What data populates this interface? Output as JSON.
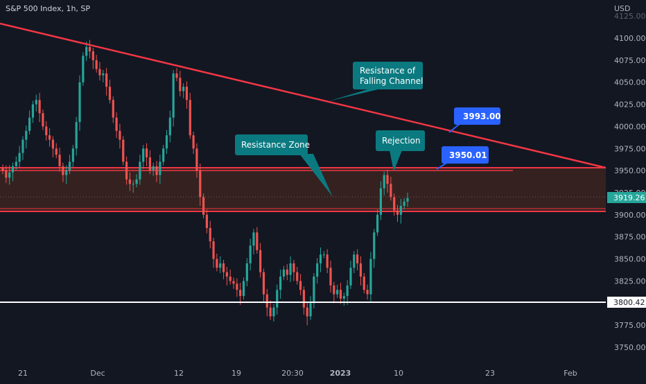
{
  "header": {
    "title": "S&P 500 Index, 1h, SP",
    "currency": "USD"
  },
  "colors": {
    "background": "#131722",
    "up": "#26a69a",
    "down": "#ef5350",
    "trendline": "#f23645",
    "zone_fill": "#3a2320",
    "zone_border": "#f23645",
    "support": "#ffffff",
    "callout_teal": "#0b7a80",
    "callout_blue": "#2962ff",
    "axis_text": "#b2b5be",
    "last_price_bg": "#26a69a"
  },
  "chart_data": {
    "type": "candlestick",
    "title": "S&P 500 Index, 1h, SP",
    "ylim": [
      3740,
      4130
    ],
    "y_ticks": [
      3750,
      3775,
      3800,
      3825,
      3850,
      3875,
      3900,
      3925,
      3950,
      3975,
      4000,
      4025,
      4050,
      4075,
      4100,
      4125
    ],
    "x_ticks": [
      "21",
      "Dec",
      "12",
      "19",
      "20:30",
      "2023",
      "10",
      "23",
      "Feb"
    ],
    "last_price": "3919.26",
    "support_level": "3800.42",
    "series": [
      {
        "kind": "closes",
        "closes": [
          3950,
          3942,
          3948,
          3955,
          3960,
          3970,
          3985,
          3995,
          4010,
          4025,
          4030,
          4015,
          4000,
          3990,
          3985,
          3975,
          3968,
          3955,
          3945,
          3950,
          3960,
          3975,
          4005,
          4050,
          4080,
          4090,
          4085,
          4075,
          4065,
          4058,
          4060,
          4045,
          4030,
          4010,
          3995,
          3985,
          3960,
          3940,
          3935,
          3935,
          3940,
          3960,
          3975,
          3965,
          3950,
          3955,
          3945,
          3960,
          3975,
          3990,
          4010,
          4060,
          4055,
          4040,
          4045,
          4030,
          3990,
          3975,
          3950,
          3920,
          3900,
          3885,
          3870,
          3850,
          3840,
          3845,
          3835,
          3830,
          3825,
          3822,
          3815,
          3808,
          3825,
          3845,
          3865,
          3880,
          3860,
          3835,
          3810,
          3795,
          3785,
          3795,
          3815,
          3830,
          3838,
          3832,
          3845,
          3835,
          3825,
          3815,
          3795,
          3785,
          3800,
          3830,
          3845,
          3855,
          3855,
          3840,
          3820,
          3810,
          3815,
          3805,
          3808,
          3820,
          3840,
          3855,
          3845,
          3830,
          3815,
          3810,
          3850,
          3880,
          3900,
          3930,
          3945,
          3935,
          3920,
          3905,
          3900,
          3910,
          3915,
          3919
        ]
      }
    ],
    "horizontal_levels": [
      {
        "name": "support",
        "value": 3800.42
      },
      {
        "name": "resistance-zone-top",
        "value": 3952
      },
      {
        "name": "resistance-zone-bottom",
        "value": 3903
      }
    ],
    "trendline": {
      "from": [
        0,
        4122
      ],
      "to": [
        131,
        3951
      ]
    },
    "annotations": [
      {
        "text": "Resistance of Falling Channel"
      },
      {
        "text": "Resistance Zone"
      },
      {
        "text": "Rejection"
      },
      {
        "text": "3993.00",
        "value": 3993.0
      },
      {
        "text": "3950.01",
        "value": 3950.01
      }
    ]
  },
  "callouts": {
    "falling_channel_l1": "Resistance of",
    "falling_channel_l2": "Falling Channel",
    "resistance_zone": "Resistance Zone",
    "rejection": "Rejection",
    "price_3993": "3993.00",
    "price_3950": "3950.01"
  }
}
